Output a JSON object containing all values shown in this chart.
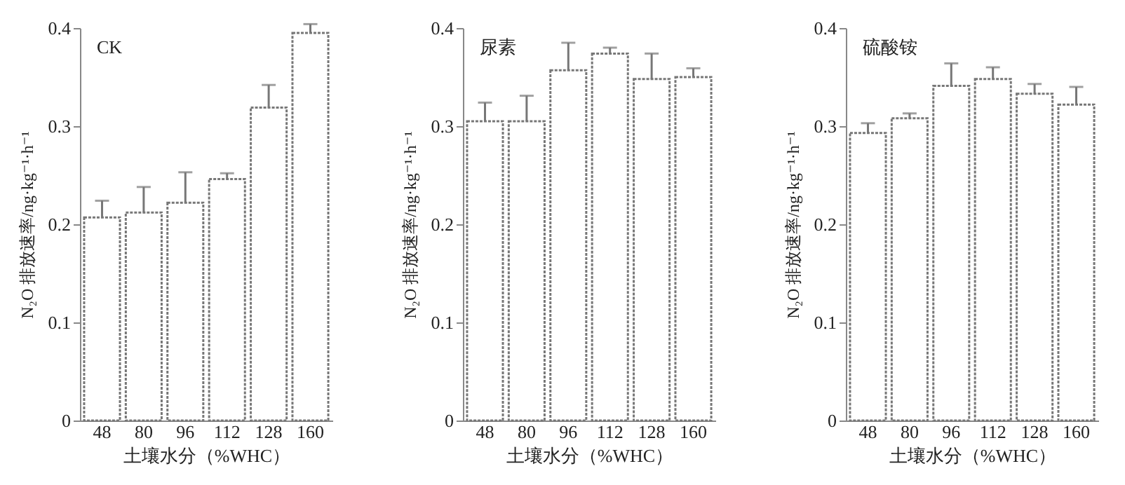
{
  "chart_data": [
    {
      "type": "bar",
      "title": "CK",
      "xlabel": "土壤水分（%WHC）",
      "ylabel": "N₂O 排放速率/ng·kg⁻¹·h⁻¹",
      "categories": [
        "48",
        "80",
        "96",
        "112",
        "128",
        "160"
      ],
      "ylim": [
        0,
        0.4
      ],
      "yticks": [
        0,
        0.1,
        0.2,
        0.3,
        0.4
      ],
      "grid": false,
      "legend": false,
      "series": [
        {
          "color": "#ffffff",
          "values": [
            0.207,
            0.212,
            0.222,
            0.246,
            0.319,
            0.395
          ],
          "errors": [
            [
              0.207,
              0.224
            ],
            [
              0.212,
              0.238
            ],
            [
              0.222,
              0.253
            ],
            [
              0.246,
              0.252
            ],
            [
              0.319,
              0.342
            ],
            [
              0.395,
              0.404
            ]
          ]
        }
      ]
    },
    {
      "type": "bar",
      "title": "尿素",
      "xlabel": "土壤水分（%WHC）",
      "ylabel": "N₂O 排放速率/ng·kg⁻¹·h⁻¹",
      "categories": [
        "48",
        "80",
        "96",
        "112",
        "128",
        "160"
      ],
      "ylim": [
        0,
        0.4
      ],
      "yticks": [
        0,
        0.1,
        0.2,
        0.3,
        0.4
      ],
      "grid": false,
      "legend": false,
      "series": [
        {
          "color": "#ffffff",
          "values": [
            0.305,
            0.305,
            0.357,
            0.374,
            0.348,
            0.35
          ],
          "errors": [
            [
              0.305,
              0.324
            ],
            [
              0.305,
              0.331
            ],
            [
              0.357,
              0.385
            ],
            [
              0.374,
              0.38
            ],
            [
              0.348,
              0.374
            ],
            [
              0.35,
              0.359
            ]
          ]
        }
      ]
    },
    {
      "type": "bar",
      "title": "硫酸铵",
      "xlabel": "土壤水分（%WHC）",
      "ylabel": "N₂O 排放速率/ng·kg⁻¹·h⁻¹",
      "categories": [
        "48",
        "80",
        "96",
        "112",
        "128",
        "160"
      ],
      "ylim": [
        0,
        0.4
      ],
      "yticks": [
        0,
        0.1,
        0.2,
        0.3,
        0.4
      ],
      "grid": false,
      "legend": false,
      "series": [
        {
          "color": "#ffffff",
          "values": [
            0.293,
            0.308,
            0.341,
            0.348,
            0.333,
            0.322
          ],
          "errors": [
            [
              0.293,
              0.303
            ],
            [
              0.308,
              0.313
            ],
            [
              0.341,
              0.364
            ],
            [
              0.348,
              0.36
            ],
            [
              0.333,
              0.343
            ],
            [
              0.322,
              0.34
            ]
          ]
        }
      ]
    }
  ]
}
